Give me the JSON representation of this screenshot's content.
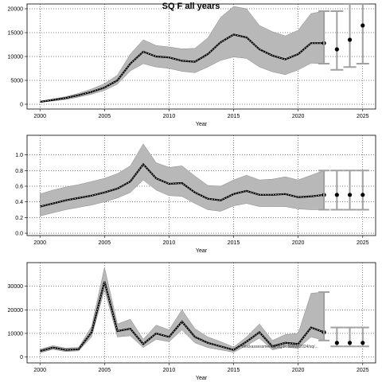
{
  "title": "SQ F all years",
  "chart_data": [
    {
      "type": "line",
      "xlabel": "Year",
      "ylabel": "",
      "xlim": [
        1999,
        2026
      ],
      "ylim": [
        -1000,
        21000
      ],
      "xticks": [
        2000,
        2005,
        2010,
        2015,
        2020,
        2025
      ],
      "yticks": [
        0,
        5000,
        10000,
        15000,
        20000
      ],
      "ytick_labels": [
        "0",
        "5000",
        "10000",
        "15000",
        "20000"
      ],
      "grid": true,
      "x": [
        2000,
        2001,
        2002,
        2003,
        2004,
        2005,
        2006,
        2007,
        2008,
        2009,
        2010,
        2011,
        2012,
        2013,
        2014,
        2015,
        2016,
        2017,
        2018,
        2019,
        2020,
        2021,
        2022
      ],
      "estimate": [
        500,
        900,
        1300,
        1900,
        2600,
        3500,
        5000,
        8500,
        11000,
        10000,
        9800,
        9100,
        8900,
        10500,
        13000,
        14600,
        14000,
        11500,
        10200,
        9400,
        10500,
        12800,
        12800
      ],
      "lower": [
        400,
        700,
        1000,
        1500,
        2100,
        2900,
        4200,
        7000,
        8500,
        7800,
        7500,
        6900,
        6600,
        7800,
        9200,
        9900,
        9600,
        7800,
        6800,
        6200,
        7200,
        8600,
        8500
      ],
      "upper": [
        600,
        1100,
        1600,
        2300,
        3200,
        4300,
        6100,
        10500,
        13500,
        12300,
        12000,
        11600,
        11700,
        13900,
        18200,
        20500,
        20000,
        16500,
        15200,
        14300,
        15500,
        19000,
        19500
      ],
      "projection_x": [
        2023,
        2024,
        2025
      ],
      "projection_estimate": [
        11500,
        13500,
        16500
      ],
      "projection_lower": [
        7200,
        7800,
        8500
      ],
      "projection_upper": [
        19500,
        21500,
        21500
      ]
    },
    {
      "type": "line",
      "xlabel": "Year",
      "ylabel": "",
      "xlim": [
        1999,
        2026
      ],
      "ylim": [
        -0.03,
        1.25
      ],
      "xticks": [
        2000,
        2005,
        2010,
        2015,
        2020,
        2025
      ],
      "yticks": [
        0,
        0.2,
        0.4,
        0.6,
        0.8,
        1.0
      ],
      "ytick_labels": [
        "0.0",
        "0.2",
        "0.4",
        "0.6",
        "0.8",
        "1.0"
      ],
      "grid": true,
      "x": [
        2000,
        2001,
        2002,
        2003,
        2004,
        2005,
        2006,
        2007,
        2008,
        2009,
        2010,
        2011,
        2012,
        2013,
        2014,
        2015,
        2016,
        2017,
        2018,
        2019,
        2020,
        2021,
        2022
      ],
      "estimate": [
        0.34,
        0.38,
        0.42,
        0.45,
        0.48,
        0.52,
        0.57,
        0.66,
        0.88,
        0.7,
        0.63,
        0.64,
        0.52,
        0.44,
        0.42,
        0.5,
        0.54,
        0.49,
        0.49,
        0.5,
        0.46,
        0.47,
        0.49
      ],
      "lower": [
        0.22,
        0.26,
        0.3,
        0.33,
        0.36,
        0.4,
        0.45,
        0.52,
        0.68,
        0.55,
        0.48,
        0.47,
        0.38,
        0.3,
        0.28,
        0.35,
        0.38,
        0.34,
        0.34,
        0.34,
        0.31,
        0.3,
        0.3
      ],
      "upper": [
        0.5,
        0.55,
        0.59,
        0.62,
        0.66,
        0.7,
        0.76,
        0.86,
        1.14,
        0.9,
        0.84,
        0.86,
        0.73,
        0.61,
        0.6,
        0.68,
        0.74,
        0.68,
        0.69,
        0.72,
        0.68,
        0.74,
        0.8
      ],
      "projection_x": [
        2023,
        2024,
        2025
      ],
      "projection_estimate": [
        0.49,
        0.49,
        0.49
      ],
      "projection_lower": [
        0.3,
        0.3,
        0.3
      ],
      "projection_upper": [
        0.8,
        0.8,
        0.8
      ]
    },
    {
      "type": "line",
      "xlabel": "Year",
      "ylabel": "",
      "xlim": [
        1999,
        2026
      ],
      "ylim": [
        -2500,
        40000
      ],
      "xticks": [
        2000,
        2005,
        2010,
        2015,
        2020,
        2025
      ],
      "yticks": [
        0,
        10000,
        20000,
        30000
      ],
      "ytick_labels": [
        "0",
        "10000",
        "20000",
        "30000"
      ],
      "grid": true,
      "x": [
        2000,
        2001,
        2002,
        2003,
        2004,
        2005,
        2006,
        2007,
        2008,
        2009,
        2010,
        2011,
        2012,
        2013,
        2014,
        2015,
        2016,
        2017,
        2018,
        2019,
        2020,
        2021,
        2022
      ],
      "estimate": [
        2500,
        4000,
        3000,
        3300,
        10500,
        32000,
        11000,
        12000,
        5500,
        10000,
        8500,
        15000,
        8500,
        6000,
        4500,
        3000,
        6500,
        10500,
        4500,
        6000,
        5500,
        12500,
        10500
      ],
      "lower": [
        1800,
        3200,
        2300,
        2600,
        8500,
        28500,
        8500,
        9000,
        4000,
        7500,
        6500,
        11500,
        6000,
        4000,
        3000,
        2000,
        4800,
        8000,
        3000,
        4200,
        3700,
        8500,
        7000
      ],
      "upper": [
        3300,
        4800,
        3800,
        4100,
        13000,
        38000,
        14000,
        16000,
        7500,
        13500,
        11500,
        20000,
        12000,
        8500,
        6500,
        4200,
        8500,
        14000,
        7000,
        9500,
        10000,
        27000,
        27500
      ],
      "projection_x": [
        2023,
        2024,
        2025
      ],
      "projection_estimate": [
        6000,
        6000,
        6000
      ],
      "projection_lower": [
        4500,
        4500,
        4500
      ],
      "projection_upper": [
        12500,
        12500,
        12500
      ],
      "annotation": "blockassessment@SQ F: NWW/2024/sq/..."
    }
  ]
}
